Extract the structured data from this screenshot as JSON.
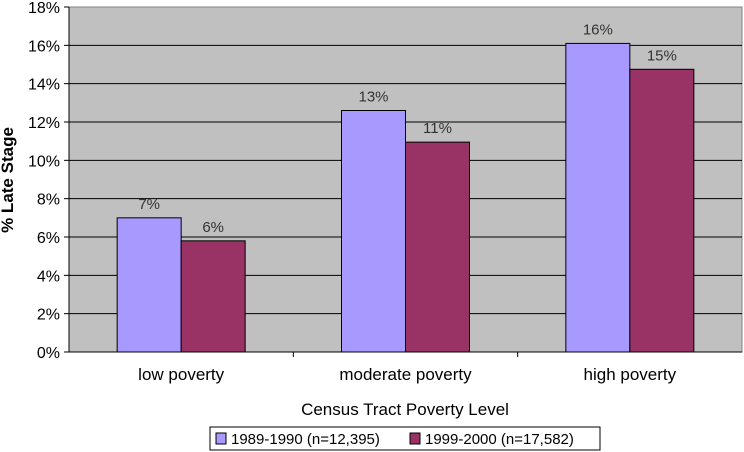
{
  "chart_data": {
    "type": "bar",
    "title": "",
    "xlabel": "Census Tract Poverty Level",
    "ylabel": "% Late Stage",
    "categories": [
      "low poverty",
      "moderate poverty",
      "high poverty"
    ],
    "series": [
      {
        "name": "1989-1990 (n=12,395)",
        "values": [
          7.0,
          12.6,
          16.1
        ],
        "labels": [
          "7%",
          "13%",
          "16%"
        ],
        "color": "#a899ff"
      },
      {
        "name": "1999-2000 (n=17,582)",
        "values": [
          5.8,
          10.95,
          14.75
        ],
        "labels": [
          "6%",
          "11%",
          "15%"
        ],
        "color": "#993366"
      }
    ],
    "ylim": [
      0,
      18
    ],
    "ytick_step": 2,
    "ytick_labels": [
      "0%",
      "2%",
      "4%",
      "6%",
      "8%",
      "10%",
      "12%",
      "14%",
      "16%",
      "18%"
    ],
    "grid": true,
    "legend": "bottom-center",
    "plot_background": "#c0c0c0"
  }
}
